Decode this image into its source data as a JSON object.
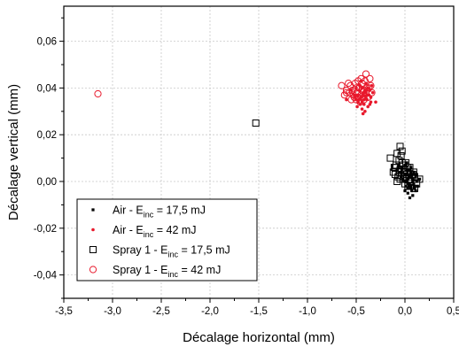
{
  "chart_data": {
    "type": "scatter",
    "title": "",
    "xlabel": "Décalage horizontal (mm)",
    "ylabel": "Décalage vertical (mm)",
    "xlim": [
      -3.5,
      0.5
    ],
    "ylim": [
      -0.05,
      0.075
    ],
    "x_ticks": [
      "-3,5",
      "-3,0",
      "-2,5",
      "-2,0",
      "-1,5",
      "-1,0",
      "-0,5",
      "0,0",
      "0,5"
    ],
    "x_tick_values": [
      -3.5,
      -3.0,
      -2.5,
      -2.0,
      -1.5,
      -1.0,
      -0.5,
      0.0,
      0.5
    ],
    "y_ticks": [
      "-0,04",
      "-0,02",
      "0,00",
      "0,02",
      "0,04",
      "0,06"
    ],
    "y_tick_values": [
      -0.04,
      -0.02,
      0.0,
      0.02,
      0.04,
      0.06
    ],
    "grid": true,
    "legend_position": "bottom-left",
    "series": [
      {
        "name": "Air - E",
        "name_sub": "inc",
        "name_rest": " = 17,5 mJ",
        "marker": "small-filled-square",
        "color": "#000000",
        "points": [
          [
            0.02,
            0.0
          ],
          [
            0.05,
            -0.002
          ],
          [
            0.08,
            0.001
          ],
          [
            0.1,
            -0.003
          ],
          [
            0.0,
            0.003
          ],
          [
            -0.02,
            0.001
          ],
          [
            0.03,
            -0.005
          ],
          [
            0.06,
            0.004
          ],
          [
            0.09,
            -0.001
          ],
          [
            0.12,
            0.0
          ],
          [
            0.04,
            0.002
          ],
          [
            0.07,
            -0.004
          ],
          [
            0.01,
            -0.002
          ],
          [
            -0.03,
            0.006
          ],
          [
            0.11,
            0.002
          ],
          [
            0.05,
            0.005
          ],
          [
            0.08,
            -0.006
          ],
          [
            0.02,
            0.008
          ],
          [
            0.0,
            -0.004
          ],
          [
            0.1,
            0.003
          ],
          [
            -0.05,
            0.004
          ],
          [
            0.06,
            -0.003
          ],
          [
            0.13,
            -0.002
          ],
          [
            0.03,
            0.001
          ],
          [
            0.07,
            0.002
          ],
          [
            0.04,
            -0.001
          ],
          [
            0.09,
            0.004
          ],
          [
            -0.01,
            0.0
          ],
          [
            0.15,
            0.001
          ],
          [
            0.05,
            -0.007
          ],
          [
            0.02,
            0.005
          ],
          [
            0.08,
            0.0
          ],
          [
            0.11,
            -0.004
          ],
          [
            -0.04,
            0.002
          ],
          [
            0.06,
            0.006
          ],
          [
            0.03,
            -0.003
          ],
          [
            0.1,
            -0.002
          ],
          [
            0.0,
            0.007
          ],
          [
            0.07,
            0.003
          ],
          [
            0.12,
            0.003
          ]
        ]
      },
      {
        "name": "Air - E",
        "name_sub": "inc",
        "name_rest": " = 42 mJ",
        "marker": "small-filled-circle",
        "color": "#e8192c",
        "points": [
          [
            -0.45,
            0.036
          ],
          [
            -0.4,
            0.038
          ],
          [
            -0.5,
            0.035
          ],
          [
            -0.42,
            0.033
          ],
          [
            -0.38,
            0.04
          ],
          [
            -0.47,
            0.039
          ],
          [
            -0.35,
            0.036
          ],
          [
            -0.52,
            0.037
          ],
          [
            -0.44,
            0.031
          ],
          [
            -0.4,
            0.042
          ],
          [
            -0.48,
            0.034
          ],
          [
            -0.36,
            0.033
          ],
          [
            -0.43,
            0.037
          ],
          [
            -0.55,
            0.039
          ],
          [
            -0.39,
            0.035
          ],
          [
            -0.46,
            0.041
          ],
          [
            -0.41,
            0.03
          ],
          [
            -0.33,
            0.038
          ],
          [
            -0.49,
            0.032
          ],
          [
            -0.44,
            0.04
          ],
          [
            -0.37,
            0.037
          ],
          [
            -0.51,
            0.036
          ],
          [
            -0.42,
            0.035
          ],
          [
            -0.34,
            0.041
          ],
          [
            -0.46,
            0.033
          ],
          [
            -0.4,
            0.036
          ],
          [
            -0.6,
            0.035
          ],
          [
            -0.43,
            0.029
          ],
          [
            -0.3,
            0.034
          ],
          [
            -0.45,
            0.043
          ],
          [
            -0.38,
            0.032
          ],
          [
            -0.5,
            0.04
          ],
          [
            -0.42,
            0.038
          ],
          [
            -0.36,
            0.039
          ],
          [
            -0.47,
            0.035
          ],
          [
            -0.44,
            0.034
          ],
          [
            -0.39,
            0.037
          ],
          [
            -0.41,
            0.039
          ],
          [
            -0.48,
            0.037
          ],
          [
            -0.35,
            0.034
          ]
        ]
      },
      {
        "name": "Spray 1 - E",
        "name_sub": "inc",
        "name_rest": " = 17,5 mJ",
        "marker": "open-square",
        "color": "#000000",
        "points": [
          [
            -1.53,
            0.025
          ],
          [
            -0.15,
            0.01
          ],
          [
            -0.1,
            0.006
          ],
          [
            -0.05,
            0.015
          ],
          [
            -0.08,
            0.012
          ],
          [
            -0.03,
            0.008
          ],
          [
            -0.1,
            0.003
          ],
          [
            -0.05,
            0.001
          ],
          [
            0.0,
            0.005
          ],
          [
            -0.07,
            0.002
          ],
          [
            -0.02,
            0.007
          ],
          [
            0.05,
            0.004
          ],
          [
            0.1,
            0.002
          ],
          [
            0.15,
            0.001
          ],
          [
            0.05,
            -0.002
          ],
          [
            0.0,
            -0.001
          ],
          [
            0.08,
            0.003
          ],
          [
            -0.12,
            0.004
          ],
          [
            -0.04,
            0.011
          ],
          [
            0.03,
            0.006
          ],
          [
            0.12,
            -0.001
          ],
          [
            -0.06,
            0.009
          ],
          [
            0.0,
            0.002
          ],
          [
            0.06,
            0.0
          ],
          [
            -0.09,
            0.007
          ],
          [
            -0.01,
            0.004
          ],
          [
            0.04,
            0.001
          ],
          [
            -0.05,
            0.005
          ],
          [
            0.09,
            0.004
          ],
          [
            0.02,
            0.003
          ],
          [
            -0.08,
            0.0
          ],
          [
            0.1,
            -0.003
          ],
          [
            -0.03,
            0.013
          ],
          [
            0.01,
            0.008
          ],
          [
            0.07,
            0.002
          ],
          [
            -0.11,
            0.006
          ],
          [
            -0.06,
            0.004
          ],
          [
            0.03,
            -0.002
          ],
          [
            -0.02,
            0.001
          ],
          [
            0.05,
            0.006
          ]
        ]
      },
      {
        "name": "Spray 1 - E",
        "name_sub": "inc",
        "name_rest": " = 42 mJ",
        "marker": "open-circle",
        "color": "#e8192c",
        "points": [
          [
            -3.15,
            0.0375
          ],
          [
            -0.65,
            0.041
          ],
          [
            -0.6,
            0.038
          ],
          [
            -0.55,
            0.035
          ],
          [
            -0.5,
            0.04
          ],
          [
            -0.45,
            0.037
          ],
          [
            -0.4,
            0.046
          ],
          [
            -0.35,
            0.041
          ],
          [
            -0.48,
            0.043
          ],
          [
            -0.52,
            0.036
          ],
          [
            -0.42,
            0.039
          ],
          [
            -0.58,
            0.042
          ],
          [
            -0.38,
            0.036
          ],
          [
            -0.46,
            0.034
          ],
          [
            -0.54,
            0.039
          ],
          [
            -0.44,
            0.042
          ],
          [
            -0.62,
            0.037
          ],
          [
            -0.4,
            0.038
          ],
          [
            -0.5,
            0.035
          ],
          [
            -0.36,
            0.044
          ],
          [
            -0.47,
            0.04
          ],
          [
            -0.56,
            0.041
          ],
          [
            -0.43,
            0.036
          ],
          [
            -0.49,
            0.038
          ],
          [
            -0.41,
            0.043
          ],
          [
            -0.53,
            0.037
          ],
          [
            -0.39,
            0.04
          ],
          [
            -0.45,
            0.044
          ],
          [
            -0.6,
            0.039
          ],
          [
            -0.34,
            0.038
          ],
          [
            -0.51,
            0.042
          ],
          [
            -0.48,
            0.036
          ],
          [
            -0.44,
            0.039
          ],
          [
            -0.57,
            0.038
          ],
          [
            -0.42,
            0.035
          ],
          [
            -0.37,
            0.04
          ]
        ]
      }
    ]
  }
}
